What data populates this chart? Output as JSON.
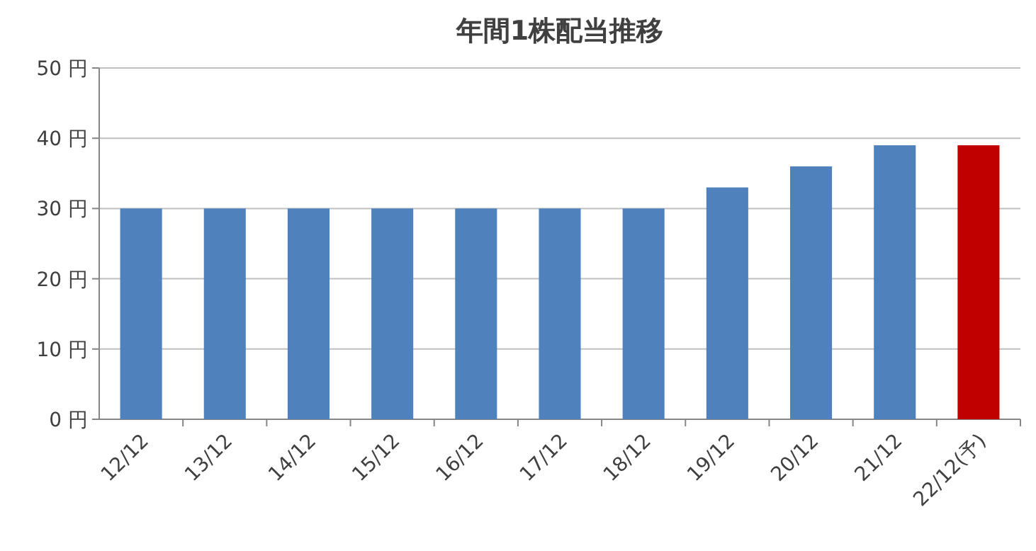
{
  "chart_data": {
    "type": "bar",
    "title": "年間1株配当推移",
    "categories": [
      "12/12",
      "13/12",
      "14/12",
      "15/12",
      "16/12",
      "17/12",
      "18/12",
      "19/12",
      "20/12",
      "21/12",
      "22/12(予)"
    ],
    "values": [
      30,
      30,
      30,
      30,
      30,
      30,
      30,
      33,
      36,
      39,
      39
    ],
    "colors": [
      "#4f81bd",
      "#4f81bd",
      "#4f81bd",
      "#4f81bd",
      "#4f81bd",
      "#4f81bd",
      "#4f81bd",
      "#4f81bd",
      "#4f81bd",
      "#4f81bd",
      "#c00000"
    ],
    "ylim": [
      0,
      50
    ],
    "yticks": [
      {
        "value": 0,
        "label": "0 円"
      },
      {
        "value": 10,
        "label": "10 円"
      },
      {
        "value": 20,
        "label": "20 円"
      },
      {
        "value": 30,
        "label": "30 円"
      },
      {
        "value": 40,
        "label": "40 円"
      },
      {
        "value": 50,
        "label": "50 円"
      }
    ],
    "grid": "y"
  }
}
